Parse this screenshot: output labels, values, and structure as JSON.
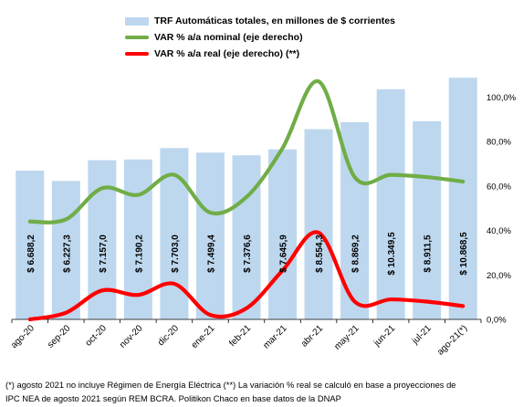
{
  "legend": [
    {
      "label": "TRF Automáticas totales, en millones de $ corrientes",
      "kind": "bar",
      "color": "#bdd7ee"
    },
    {
      "label": "VAR % a/a nominal (eje derecho)",
      "kind": "line",
      "color": "#70ad47"
    },
    {
      "label": "VAR % a/a real (eje derecho) (**)",
      "kind": "line",
      "color": "#ff0000"
    }
  ],
  "footnote": {
    "line1": "(*) agosto 2021 no incluye Régimen de Energía Eléctrica (**) La variación % real se calculó en base a proyecciones de",
    "line2": "IPC NEA de agosto 2021 según REM BCRA. Politikon Chaco en base datos de la DNAP"
  },
  "chart_data": {
    "type": "bar",
    "categories": [
      "ago-20",
      "sep-20",
      "oct-20",
      "nov-20",
      "dic-20",
      "ene-21",
      "feb-21",
      "mar-21",
      "abr-21",
      "may-21",
      "jun-21",
      "jul-21",
      "ago-21(*)"
    ],
    "series": [
      {
        "name": "TRF Automáticas totales, en millones de $ corrientes",
        "type": "bar",
        "axis": "left",
        "color": "#bdd7ee",
        "values": [
          6688.2,
          6227.3,
          7157.0,
          7190.2,
          7703.0,
          7499.4,
          7376.6,
          7645.9,
          8554.3,
          8869.2,
          10349.5,
          8911.5,
          10868.5
        ],
        "labels": [
          "$ 6.688,2",
          "$ 6.227,3",
          "$ 7.157,0",
          "$ 7.190,2",
          "$ 7.703,0",
          "$ 7.499,4",
          "$ 7.376,6",
          "$ 7.645,9",
          "$ 8.554,3",
          "$ 8.869,2",
          "$ 10.349,5",
          "$ 8.911,5",
          "$ 10.868,5"
        ]
      },
      {
        "name": "VAR % a/a nominal (eje derecho)",
        "type": "line",
        "axis": "right",
        "color": "#70ad47",
        "values": [
          44,
          45,
          59,
          56,
          65,
          48,
          55,
          77,
          107,
          64,
          65,
          64,
          62
        ]
      },
      {
        "name": "VAR % a/a real (eje derecho) (**)",
        "type": "line",
        "axis": "right",
        "color": "#ff0000",
        "values": [
          0,
          3,
          13,
          11,
          16,
          2,
          5,
          22,
          39,
          8,
          9,
          8,
          6
        ]
      }
    ],
    "ylim_left": [
      0,
      11900
    ],
    "ylim_right": [
      0,
      119
    ],
    "right_ticks": [
      0,
      20,
      40,
      60,
      80,
      100
    ],
    "right_tick_labels": [
      "0,0%",
      "20,0%",
      "40,0%",
      "60,0%",
      "80,0%",
      "100,0%"
    ],
    "grid": false,
    "legend_position": "top"
  }
}
